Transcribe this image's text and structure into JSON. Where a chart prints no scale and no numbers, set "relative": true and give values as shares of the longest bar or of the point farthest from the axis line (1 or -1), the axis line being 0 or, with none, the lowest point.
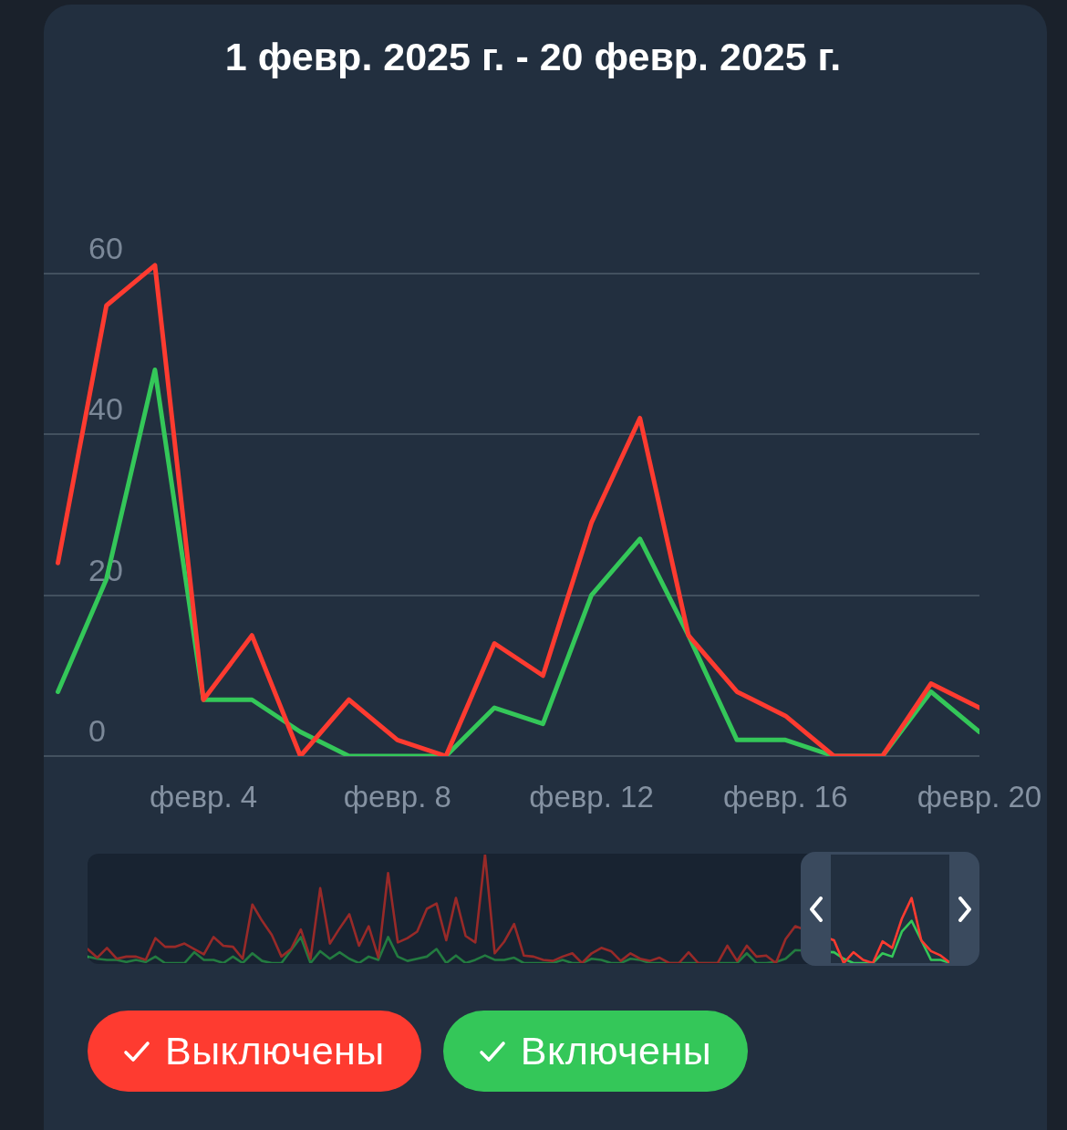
{
  "chart_data": [
    {
      "type": "line",
      "title": "1 февр. 2025 г. - 20 февр. 2025 г.",
      "x": [
        "2025-02-01",
        "2025-02-02",
        "2025-02-03",
        "2025-02-04",
        "2025-02-05",
        "2025-02-06",
        "2025-02-07",
        "2025-02-08",
        "2025-02-09",
        "2025-02-10",
        "2025-02-11",
        "2025-02-12",
        "2025-02-13",
        "2025-02-14",
        "2025-02-15",
        "2025-02-16",
        "2025-02-17",
        "2025-02-18",
        "2025-02-19",
        "2025-02-20"
      ],
      "series": [
        {
          "name": "Выключены",
          "color": "#fe3b30",
          "values": [
            24,
            56,
            61,
            7,
            15,
            0,
            7,
            2,
            0,
            14,
            10,
            29,
            42,
            15,
            8,
            5,
            0,
            0,
            9,
            6
          ]
        },
        {
          "name": "Включены",
          "color": "#34c759",
          "values": [
            8,
            22,
            48,
            7,
            7,
            3,
            0,
            0,
            0,
            6,
            4,
            20,
            27,
            15,
            2,
            2,
            0,
            0,
            8,
            3
          ]
        }
      ],
      "xlim": [
        "2025-01-31T17:00",
        "2025-02-20"
      ],
      "xticks": [
        {
          "value": "2025-02-04",
          "label": "февр. 4"
        },
        {
          "value": "2025-02-08",
          "label": "февр. 8"
        },
        {
          "value": "2025-02-12",
          "label": "февр. 12"
        },
        {
          "value": "2025-02-16",
          "label": "февр. 16"
        },
        {
          "value": "2025-02-20",
          "label": "февр. 20"
        }
      ],
      "ylim": [
        0,
        93.4
      ],
      "yticks": [
        0,
        20,
        40,
        60
      ],
      "grid": "y",
      "legend": "bottom"
    },
    {
      "type": "line",
      "relative": true,
      "categories": [
        null,
        null,
        null,
        null,
        null,
        null,
        null,
        null,
        null,
        null,
        null,
        null,
        null,
        null,
        null,
        null,
        null,
        null,
        null,
        null,
        null,
        null,
        null,
        null,
        null,
        null,
        null,
        null,
        null,
        null,
        null,
        null,
        null,
        null,
        null,
        null,
        null,
        null,
        null,
        null,
        null,
        null,
        null,
        null,
        null,
        null,
        null,
        null,
        null,
        null,
        null,
        null,
        null,
        null,
        null,
        null,
        null,
        null,
        null,
        null,
        null,
        null,
        null,
        null,
        null,
        null,
        null,
        null,
        null,
        null,
        null,
        null,
        null,
        null,
        null,
        null,
        null,
        null,
        null,
        null,
        null,
        null,
        null,
        null,
        null,
        null,
        null,
        null,
        null,
        null,
        null,
        null,
        null
      ],
      "series": [
        {
          "color": "#fe3b30",
          "values": [
            0.13,
            0.05,
            0.14,
            0.04,
            0.06,
            0.06,
            0.03,
            0.23,
            0.15,
            0.15,
            0.18,
            0.13,
            0.08,
            0.24,
            0.16,
            0.15,
            0.04,
            0.54,
            0.39,
            0.26,
            0.06,
            0.13,
            0.31,
            0.04,
            0.69,
            0.18,
            0.32,
            0.45,
            0.16,
            0.34,
            0.05,
            0.83,
            0.19,
            0.23,
            0.29,
            0.5,
            0.55,
            0.21,
            0.6,
            0.25,
            0.19,
            1,
            0.09,
            0.2,
            0.36,
            0.07,
            0.06,
            0.03,
            0.02,
            0.06,
            0.09,
            0,
            0.09,
            0.14,
            0.11,
            0.02,
            0.09,
            0.04,
            0.02,
            0.05,
            0,
            0,
            0.1,
            0,
            0,
            0,
            0.16,
            0.02,
            0.16,
            0.06,
            0.07,
            0,
            0.22,
            0.34,
            null,
            null,
            null,
            0.21,
            0,
            0.1,
            0.03,
            0,
            0.2,
            0.14,
            0.41,
            0.6,
            0.21,
            0.11,
            0.07,
            0,
            null,
            null,
            null
          ]
        },
        {
          "color": "#34c759",
          "values": [
            0.06,
            0.04,
            0.03,
            0.03,
            0.01,
            0.03,
            0.01,
            0.06,
            0,
            0,
            0,
            0.1,
            0.03,
            0.03,
            0,
            0.06,
            0,
            0.09,
            0.02,
            0,
            0,
            0.12,
            0.24,
            0,
            0.11,
            0.04,
            0.1,
            0.04,
            0,
            0.06,
            0.03,
            0.24,
            0.06,
            0.02,
            0.04,
            0.06,
            0.13,
            0,
            0.07,
            0,
            0.03,
            0.07,
            0.03,
            0.03,
            0.05,
            0,
            0,
            0,
            0,
            0.03,
            0,
            0,
            0.04,
            0.03,
            0,
            0,
            0.04,
            0.03,
            0,
            0,
            0,
            0,
            0,
            0,
            0,
            0,
            0,
            0,
            0.09,
            0,
            0,
            0.01,
            0.04,
            0.12,
            null,
            null,
            null,
            0.1,
            0.04,
            0,
            0,
            0,
            0.09,
            0.06,
            0.29,
            0.39,
            0.21,
            0.03,
            0.03,
            0,
            null,
            null,
            null
          ]
        }
      ]
    }
  ]
}
